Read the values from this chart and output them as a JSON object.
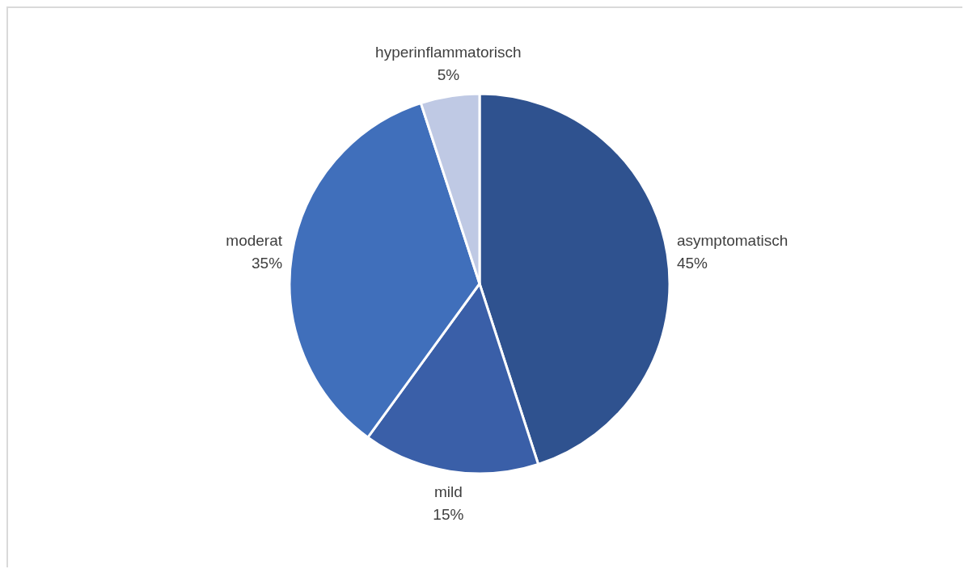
{
  "chart_data": {
    "type": "pie",
    "categories": [
      "asymptomatisch",
      "mild",
      "moderat",
      "hyperinflammatorisch"
    ],
    "values": [
      45,
      15,
      35,
      5
    ],
    "value_labels": [
      "45%",
      "15%",
      "35%",
      "5%"
    ],
    "colors": [
      "#2f528f",
      "#3a5fa8",
      "#406fbb",
      "#bfc9e4"
    ],
    "legend": false
  }
}
